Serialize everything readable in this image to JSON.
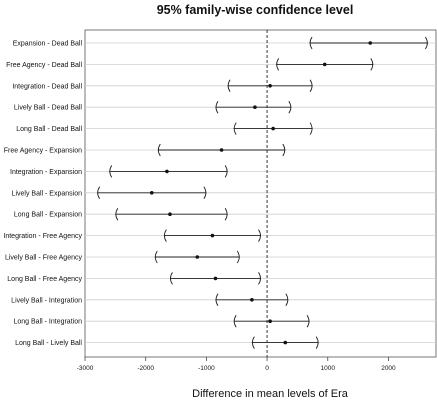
{
  "chart_data": {
    "type": "interval",
    "title": "95% family-wise confidence level",
    "xlabel": "Difference in mean levels of Era",
    "ylabel": "",
    "xlim": [
      -3000,
      2800
    ],
    "xticks": [
      -3000,
      -2000,
      -1000,
      0,
      1000,
      2000
    ],
    "reference_line": 0,
    "grid": "horizontal",
    "comparisons": [
      {
        "label": "Expansion - Dead Ball",
        "lwr": 700,
        "diff": 1700,
        "upr": 2650
      },
      {
        "label": "Free Agency - Dead Ball",
        "lwr": 150,
        "diff": 950,
        "upr": 1750
      },
      {
        "label": "Integration - Dead Ball",
        "lwr": -650,
        "diff": 50,
        "upr": 750
      },
      {
        "label": "Lively Ball - Dead Ball",
        "lwr": -850,
        "diff": -200,
        "upr": 400
      },
      {
        "label": "Long Ball - Dead Ball",
        "lwr": -550,
        "diff": 100,
        "upr": 750
      },
      {
        "label": "Free Agency - Expansion",
        "lwr": -1800,
        "diff": -750,
        "upr": 300
      },
      {
        "label": "Integration - Expansion",
        "lwr": -2600,
        "diff": -1650,
        "upr": -650
      },
      {
        "label": "Lively Ball - Expansion",
        "lwr": -2800,
        "diff": -1900,
        "upr": -1000
      },
      {
        "label": "Long Ball - Expansion",
        "lwr": -2500,
        "diff": -1600,
        "upr": -650
      },
      {
        "label": "Integration - Free Agency",
        "lwr": -1700,
        "diff": -900,
        "upr": -100
      },
      {
        "label": "Lively Ball - Free Agency",
        "lwr": -1850,
        "diff": -1150,
        "upr": -450
      },
      {
        "label": "Long Ball - Free Agency",
        "lwr": -1600,
        "diff": -850,
        "upr": -100
      },
      {
        "label": "Lively Ball - Integration",
        "lwr": -850,
        "diff": -250,
        "upr": 350
      },
      {
        "label": "Long Ball - Integration",
        "lwr": -550,
        "diff": 50,
        "upr": 700
      },
      {
        "label": "Long Ball - Lively Ball",
        "lwr": -250,
        "diff": 300,
        "upr": 850
      }
    ]
  }
}
